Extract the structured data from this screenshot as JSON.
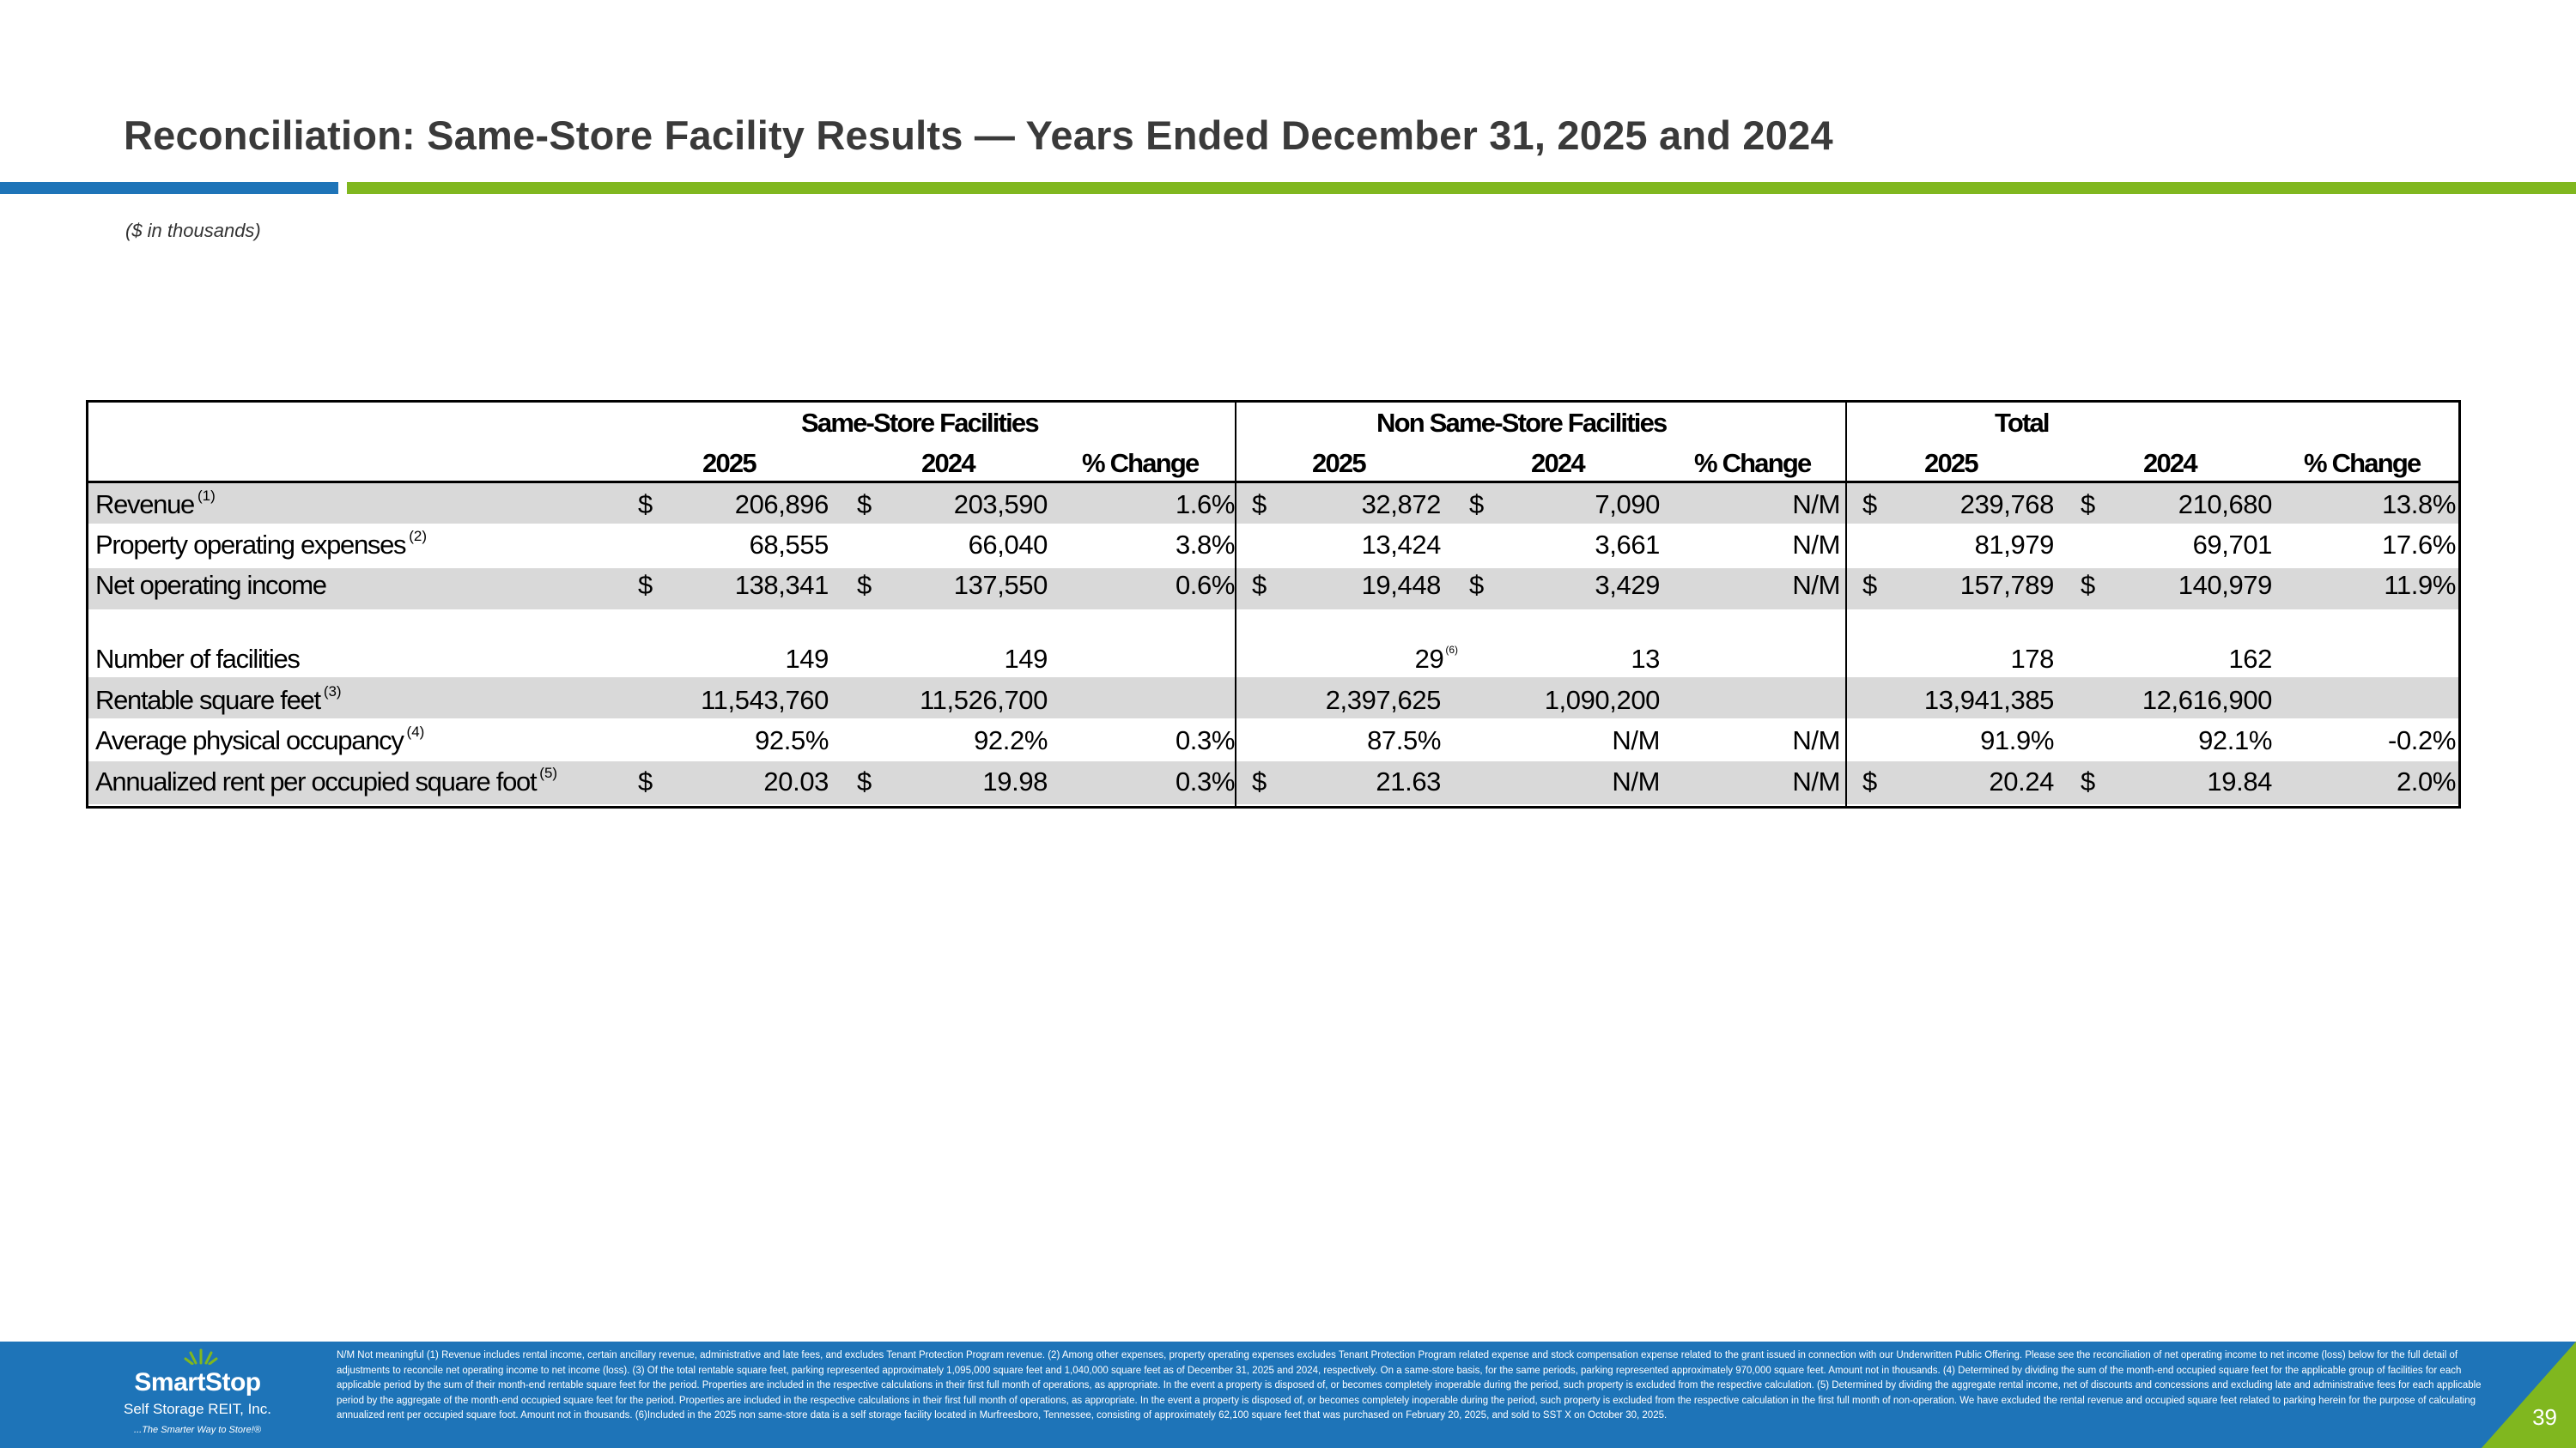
{
  "title": "Reconciliation: Same-Store Facility Results — Years Ended December 31, 2025 and 2024",
  "units_note": "($ in thousands)",
  "colors": {
    "blue": "#1e74b8",
    "green": "#80b71f",
    "title": "#3a3a3a",
    "band": "#d9d9d9"
  },
  "table": {
    "groups": [
      "Same-Store Facilities",
      "Non Same-Store Facilities",
      "Total"
    ],
    "subheaders": [
      "2025",
      "2024",
      "% Change",
      "2025",
      "2024",
      "% Change",
      "2025",
      "2024",
      "% Change"
    ],
    "rows": [
      {
        "label": "Revenue",
        "sup": "(1)",
        "d1": "$",
        "c1": "206,896",
        "d2": "$",
        "c2": "203,590",
        "c3": "1.6%",
        "d4": "$",
        "c4": "32,872",
        "d5": "$",
        "c5": "7,090",
        "c6": "N/M",
        "d7": "$",
        "c7": "239,768",
        "d8": "$",
        "c8": "210,680",
        "c9": "13.8%"
      },
      {
        "label": "Property operating expenses",
        "sup": "(2)",
        "c1": "68,555",
        "c2": "66,040",
        "c3": "3.8%",
        "c4": "13,424",
        "c5": "3,661",
        "c6": "N/M",
        "c7": "81,979",
        "c8": "69,701",
        "c9": "17.6%"
      },
      {
        "label": "Net operating income",
        "d1": "$",
        "c1": "138,341",
        "d2": "$",
        "c2": "137,550",
        "c3": "0.6%",
        "d4": "$",
        "c4": "19,448",
        "d5": "$",
        "c5": "3,429",
        "c6": "N/M",
        "d7": "$",
        "c7": "157,789",
        "d8": "$",
        "c8": "140,979",
        "c9": "11.9%"
      },
      {
        "label": "Number of facilities",
        "c1": "149",
        "c2": "149",
        "c4": "29",
        "c4sup": "(6)",
        "c5": "13",
        "c7": "178",
        "c8": "162"
      },
      {
        "label": "Rentable square feet",
        "sup": "(3)",
        "c1": "11,543,760",
        "c2": "11,526,700",
        "c4": "2,397,625",
        "c5": "1,090,200",
        "c7": "13,941,385",
        "c8": "12,616,900"
      },
      {
        "label": "Average physical occupancy",
        "sup": "(4)",
        "c1": "92.5%",
        "c2": "92.2%",
        "c3": "0.3%",
        "c4": "87.5%",
        "c5": "N/M",
        "c6": "N/M",
        "c7": "91.9%",
        "c8": "92.1%",
        "c9": "-0.2%"
      },
      {
        "label": "Annualized rent per occupied square foot",
        "sup": "(5)",
        "d1": "$",
        "c1": "20.03",
        "d2": "$",
        "c2": "19.98",
        "c3": "0.3%",
        "d4": "$",
        "c4": "21.63",
        "c5": "N/M",
        "c6": "N/M",
        "d7": "$",
        "c7": "20.24",
        "d8": "$",
        "c8": "19.84",
        "c9": "2.0%"
      }
    ]
  },
  "footnotes": "N/M Not meaningful   (1) Revenue includes rental income, certain ancillary revenue, administrative and late fees, and excludes Tenant Protection Program revenue. (2) Among other expenses, property operating expenses excludes Tenant Protection Program related expense and stock compensation expense related to the grant issued in connection with our Underwritten Public Offering. Please see the reconciliation of net operating income to net income (loss) below for the full detail of adjustments to reconcile net operating income to net income (loss).  (3) Of the total rentable square feet, parking represented approximately 1,095,000 square feet and 1,040,000 square feet as of December 31, 2025 and 2024, respectively. On a same-store basis, for the same periods, parking represented approximately 970,000 square feet. Amount not in thousands. (4) Determined by dividing the sum of the month-end occupied square feet for the applicable group of facilities for each applicable period by the sum of their month-end rentable square feet for the period. Properties are included in the respective calculations in their first full month of operations, as appropriate. In the event a property is disposed of, or becomes completely inoperable during the period, such property is excluded from the respective calculation. (5) Determined by dividing the aggregate rental income, net of discounts and concessions and excluding late and administrative fees for each applicable period by the aggregate of the month-end occupied square feet for the period. Properties are included in the respective calculations in their first full month of operations, as appropriate. In the event a property is disposed of, or becomes completely inoperable during the period, such property is excluded from the respective calculation in the first full month of non-operation. We have excluded the rental revenue and occupied square feet related to parking herein for the purpose of calculating annualized rent per occupied square foot. Amount not in thousands. (6)Included in the 2025 non same-store data is a self storage facility located in Murfreesboro, Tennessee, consisting of approximately 62,100 square feet that was purchased on February 20, 2025, and sold to SST X on October 30, 2025.",
  "logo": {
    "name": "SmartStop",
    "sub": "Self Storage REIT, Inc.",
    "tagline": "...The Smarter Way to Store!®"
  },
  "page_number": "39"
}
